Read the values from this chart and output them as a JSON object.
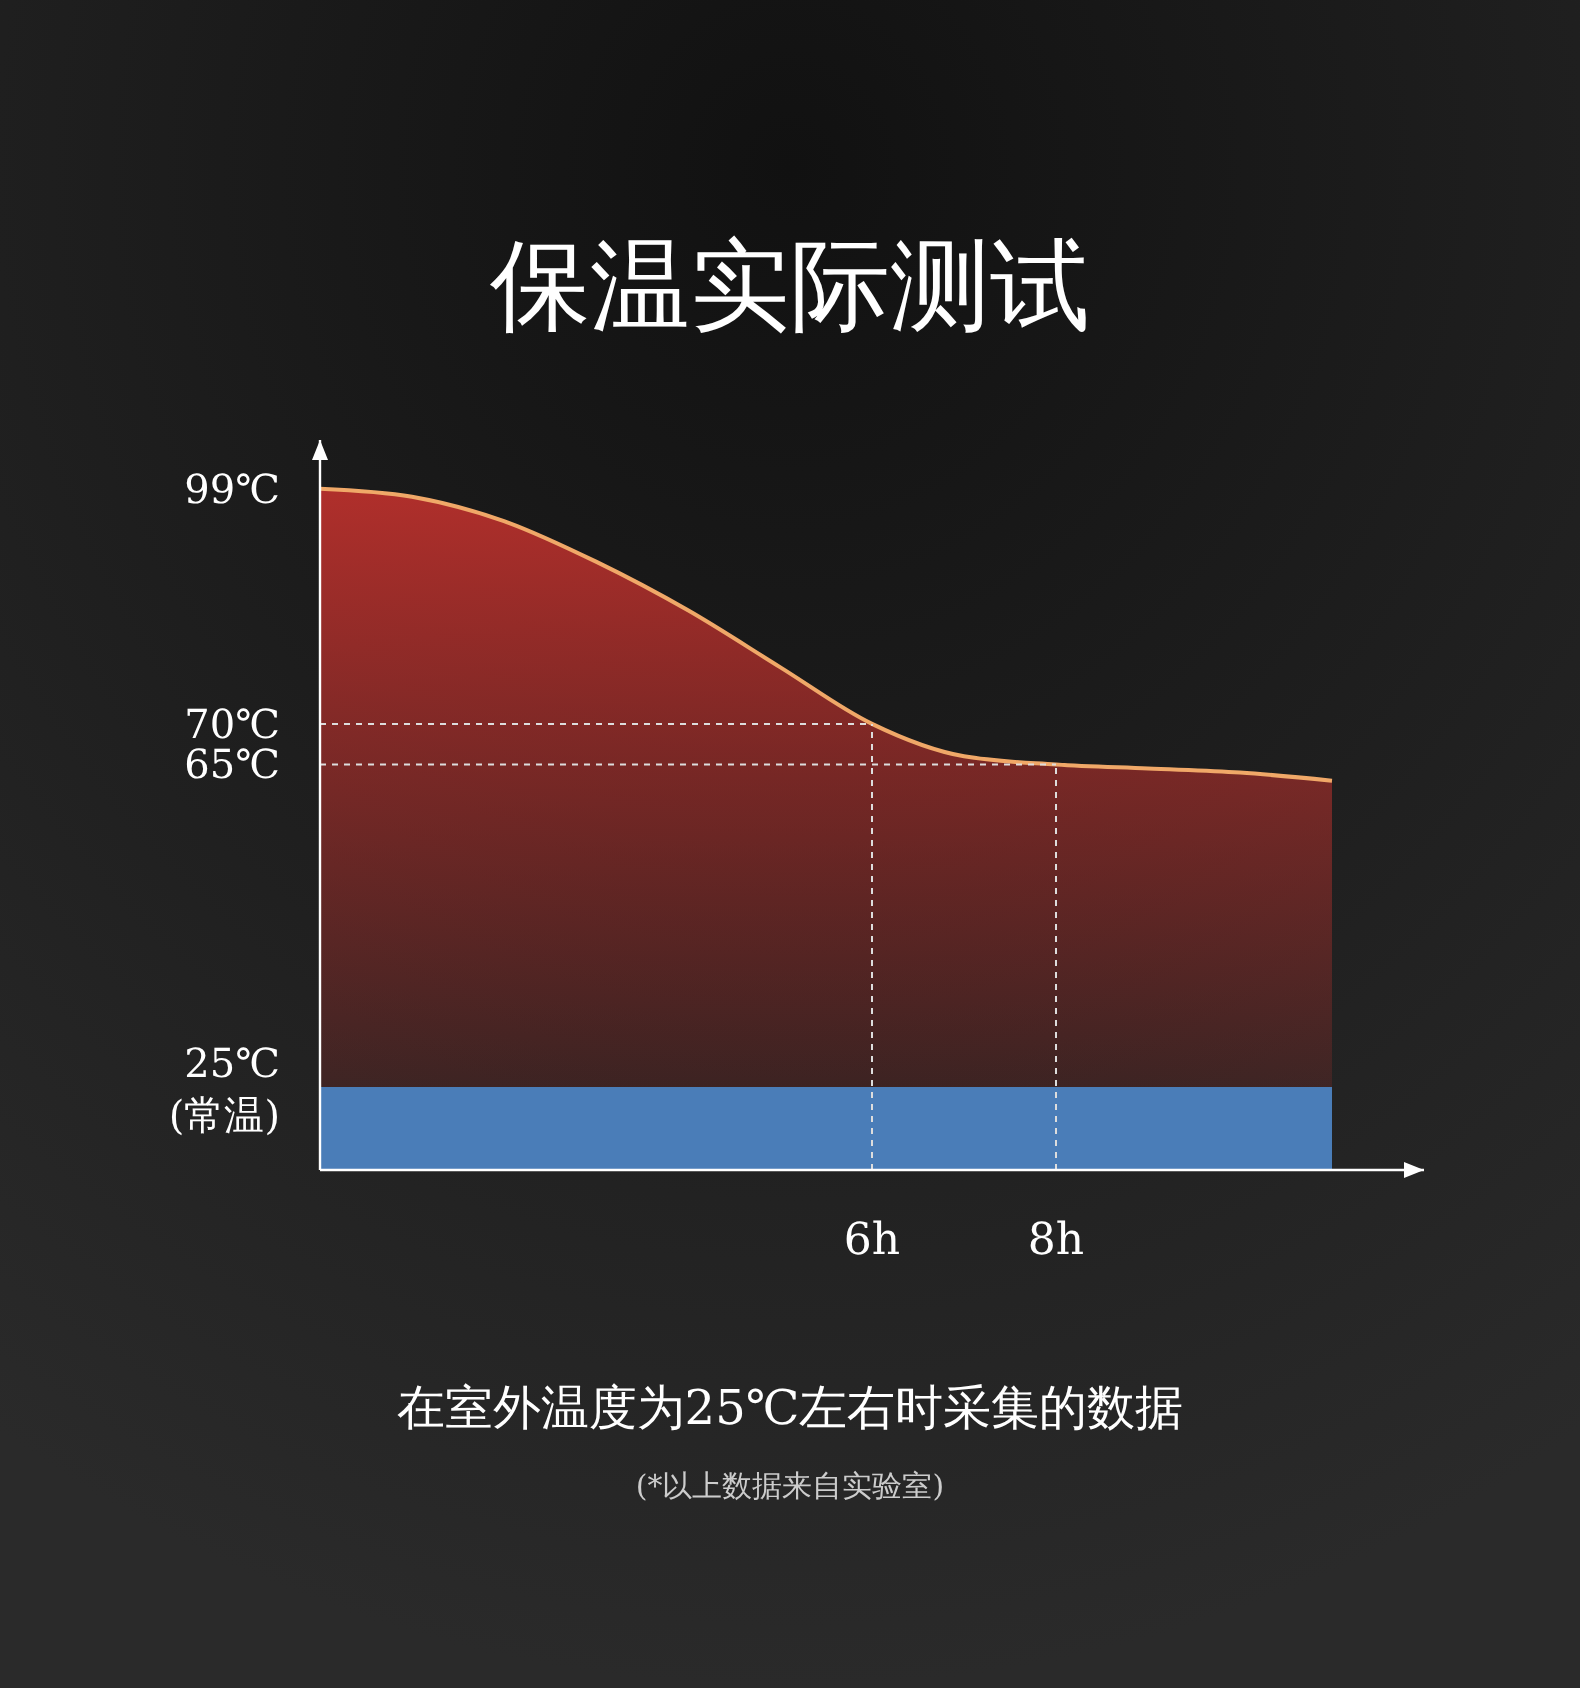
{
  "chart_data": {
    "type": "area",
    "title": "保温实际测试",
    "x": [
      0,
      1,
      2,
      3,
      4,
      5,
      6,
      7,
      8,
      9,
      10,
      11
    ],
    "series": [
      {
        "color": "#b8302c",
        "values": [
          99,
          98,
          95,
          90,
          84,
          77,
          70,
          66,
          65,
          64.5,
          64,
          63
        ]
      },
      {
        "color": "#4a7db8",
        "values": [
          25,
          25,
          25,
          25,
          25,
          25,
          25,
          25,
          25,
          25,
          25,
          25
        ]
      }
    ],
    "xlim": [
      0,
      12
    ],
    "xticks": [
      {
        "value": 6,
        "label": "6h"
      },
      {
        "value": 8,
        "label": "8h"
      }
    ],
    "ylim": [
      15,
      105
    ],
    "yticks": [
      {
        "value": 25,
        "label": "25℃\n(常温)"
      },
      {
        "value": 65,
        "label": "65℃"
      },
      {
        "value": 70,
        "label": "70℃"
      },
      {
        "value": 99,
        "label": "99℃"
      }
    ],
    "grid": false,
    "ref_lines": [
      {
        "axis": "x",
        "value": 6,
        "color": "#dddddd",
        "line_style": "dashed"
      },
      {
        "axis": "x",
        "value": 8,
        "color": "#dddddd",
        "line_style": "dashed"
      },
      {
        "axis": "y",
        "value": 70,
        "color": "#dddddd",
        "line_style": "dashed"
      },
      {
        "axis": "y",
        "value": 65,
        "color": "#dddddd",
        "line_style": "dashed"
      }
    ],
    "annotations": [
      "在室外温度为25℃左右时采集的数据",
      "(*以上数据来自实验室)"
    ]
  }
}
